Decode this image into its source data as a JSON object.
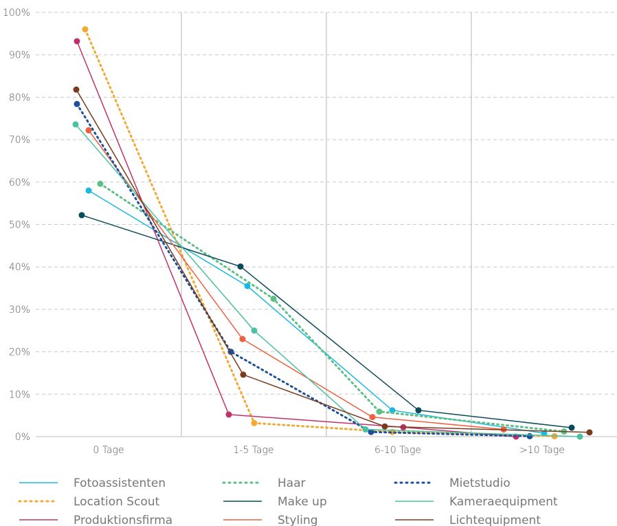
{
  "chart_data": {
    "type": "line",
    "categories": [
      "0 Tage",
      "1-5 Tage",
      "6-10 Tage",
      ">10 Tage"
    ],
    "ylim": [
      0,
      100
    ],
    "yticks": [
      0,
      10,
      20,
      30,
      40,
      50,
      60,
      70,
      80,
      90,
      100
    ],
    "ytick_labels": [
      "0%",
      "10%",
      "20%",
      "30%",
      "40%",
      "50%",
      "60%",
      "70%",
      "80%",
      "90%",
      "100%"
    ],
    "grid": true,
    "legend_position": "bottom",
    "series": [
      {
        "name": "Fotoassistenten",
        "color": "#1cb8e0",
        "style": "solid",
        "values": [
          58,
          35.5,
          6.2,
          0.8
        ]
      },
      {
        "name": "Location Scout",
        "color": "#f2a833",
        "style": "dotted",
        "values": [
          96,
          3.2,
          1.1,
          0.1
        ]
      },
      {
        "name": "Produktionsfirma",
        "color": "#c2306a",
        "style": "solid",
        "values": [
          93.2,
          5.2,
          2.2,
          0
        ]
      },
      {
        "name": "Haar",
        "color": "#5dbf85",
        "style": "dotted",
        "values": [
          59.6,
          32.5,
          5.9,
          1.2
        ]
      },
      {
        "name": "Make up",
        "color": "#0b4a5a",
        "style": "solid",
        "values": [
          52.2,
          40.1,
          6.2,
          2.1
        ]
      },
      {
        "name": "Styling",
        "color": "#ee6040",
        "style": "solid",
        "values": [
          72.2,
          23,
          4.6,
          1.7
        ]
      },
      {
        "name": "Mietstudio",
        "color": "#1d4f9a",
        "style": "dotted",
        "values": [
          78.4,
          20,
          1.1,
          0.1
        ]
      },
      {
        "name": "Kameraequipment",
        "color": "#4cc0a2",
        "style": "solid",
        "values": [
          73.6,
          25,
          1.7,
          0
        ]
      },
      {
        "name": "Lichtequipment",
        "color": "#7a3a1c",
        "style": "solid",
        "values": [
          81.8,
          14.6,
          2.4,
          1
        ]
      }
    ]
  }
}
